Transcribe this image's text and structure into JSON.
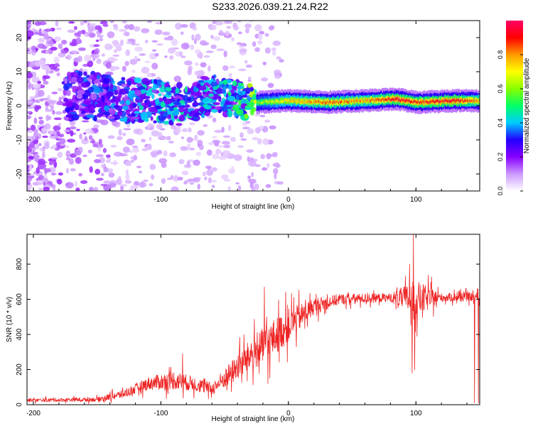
{
  "title": "S233.2026.039.21.24.R22",
  "colors": {
    "snr_line": "#ee2222",
    "axis": "#000000",
    "background": "#ffffff"
  },
  "chart_data": [
    {
      "type": "heatmap",
      "name": "spectrogram",
      "xlabel": "Height of straight line (km)",
      "ylabel": "Frequency (Hz)",
      "xlim": [
        -205,
        150
      ],
      "ylim": [
        -25,
        25
      ],
      "xticks": [
        -200,
        -100,
        0,
        100
      ],
      "yticks": [
        -20,
        -10,
        0,
        10,
        20
      ],
      "colorbar": {
        "label": "Normalized spectral amplitude",
        "range": [
          0.0,
          1.0
        ],
        "ticks": [
          0.0,
          0.2,
          0.4,
          0.6,
          0.8
        ],
        "colormap": [
          "#ffffff",
          "#cc99ff",
          "#8800ff",
          "#2200ff",
          "#00ccff",
          "#00ff66",
          "#88ff00",
          "#ffff00",
          "#ff9900",
          "#ff0000",
          "#ff0066"
        ]
      },
      "centerline": [
        {
          "x": -160,
          "freq": 3,
          "amp": 0.3
        },
        {
          "x": -130,
          "freq": 2,
          "amp": 0.35
        },
        {
          "x": -100,
          "freq": 1,
          "amp": 0.4
        },
        {
          "x": -80,
          "freq": 0,
          "amp": 0.4
        },
        {
          "x": -60,
          "freq": 4,
          "amp": 0.4
        },
        {
          "x": -40,
          "freq": 2,
          "amp": 0.45
        },
        {
          "x": -25,
          "freq": 1,
          "amp": 0.6
        },
        {
          "x": 0,
          "freq": 1.5,
          "amp": 0.75
        },
        {
          "x": 30,
          "freq": 1,
          "amp": 0.85
        },
        {
          "x": 60,
          "freq": 1.5,
          "amp": 0.8
        },
        {
          "x": 85,
          "freq": 2,
          "amp": 0.95
        },
        {
          "x": 100,
          "freq": 1,
          "amp": 0.9
        },
        {
          "x": 130,
          "freq": 1.5,
          "amp": 0.95
        },
        {
          "x": 150,
          "freq": 1.5,
          "amp": 0.8
        }
      ]
    },
    {
      "type": "line",
      "name": "snr",
      "xlabel": "Height of straight line (km)",
      "ylabel": "SNR (10 * v/v)",
      "xlim": [
        -205,
        150
      ],
      "ylim": [
        0,
        970
      ],
      "xticks": [
        -200,
        -100,
        0,
        100
      ],
      "yticks": [
        0,
        200,
        400,
        600,
        800
      ],
      "envelope": [
        {
          "x": -205,
          "mean": 25,
          "spread": 15
        },
        {
          "x": -150,
          "mean": 30,
          "spread": 20
        },
        {
          "x": -130,
          "mean": 60,
          "spread": 40
        },
        {
          "x": -110,
          "mean": 120,
          "spread": 60
        },
        {
          "x": -90,
          "mean": 140,
          "spread": 90
        },
        {
          "x": -75,
          "mean": 120,
          "spread": 70
        },
        {
          "x": -60,
          "mean": 90,
          "spread": 60
        },
        {
          "x": -45,
          "mean": 180,
          "spread": 110
        },
        {
          "x": -30,
          "mean": 280,
          "spread": 150
        },
        {
          "x": -15,
          "mean": 360,
          "spread": 180
        },
        {
          "x": 0,
          "mean": 450,
          "spread": 160
        },
        {
          "x": 20,
          "mean": 560,
          "spread": 80
        },
        {
          "x": 40,
          "mean": 600,
          "spread": 50
        },
        {
          "x": 80,
          "mean": 610,
          "spread": 40
        },
        {
          "x": 100,
          "mean": 600,
          "spread": 180
        },
        {
          "x": 120,
          "mean": 610,
          "spread": 40
        },
        {
          "x": 150,
          "mean": 615,
          "spread": 40
        }
      ],
      "spikes": [
        {
          "x": -83,
          "y": 290
        },
        {
          "x": -19,
          "y": 670
        },
        {
          "x": -16,
          "y": 120
        },
        {
          "x": 95,
          "y": 800
        },
        {
          "x": 98,
          "y": 970
        },
        {
          "x": 97,
          "y": 180
        },
        {
          "x": 99,
          "y": 200
        },
        {
          "x": 146,
          "y": 10
        },
        {
          "x": 149,
          "y": 10
        }
      ]
    }
  ]
}
